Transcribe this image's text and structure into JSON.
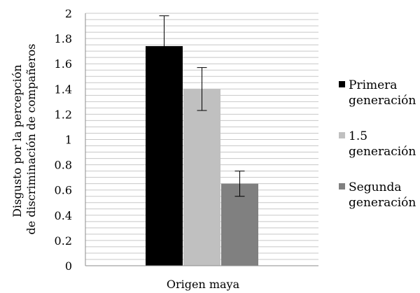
{
  "chart_data": {
    "type": "bar",
    "categories": [
      "Origen maya"
    ],
    "series": [
      {
        "name": "Primera generación",
        "legend_lines": [
          "Primera",
          "generación"
        ],
        "values": [
          1.74
        ],
        "error": [
          0.24
        ],
        "color": "#000000"
      },
      {
        "name": "1.5 generación",
        "legend_lines": [
          "1.5",
          "generación"
        ],
        "values": [
          1.4
        ],
        "error": [
          0.17
        ],
        "color": "#c0c0c0"
      },
      {
        "name": "Segunda generación",
        "legend_lines": [
          "Segunda",
          "generación"
        ],
        "values": [
          0.65
        ],
        "error": [
          0.1
        ],
        "color": "#808080"
      }
    ],
    "xlabel": "Origen maya",
    "ylabel_lines": [
      "Disgusto por la percepción",
      "de discriminación de compañeros"
    ],
    "ylim": [
      0,
      2
    ],
    "yticks": [
      "0",
      "0.2",
      "0.4",
      "0.6",
      "0.8",
      "1",
      "1.2",
      "1.4",
      "1.6",
      "1.8",
      "2"
    ],
    "minor_grid_step": 0.05,
    "legend_position": "right",
    "grid": true
  }
}
